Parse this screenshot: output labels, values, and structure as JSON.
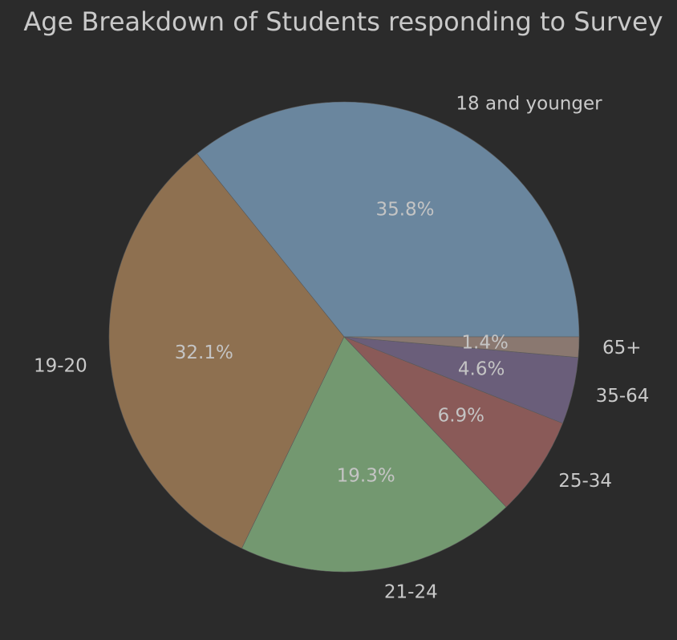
{
  "chart_data": {
    "type": "pie",
    "title": "Age Breakdown of Students responding to Survey",
    "slices": [
      {
        "label": "18 and younger",
        "pct_label": "35.8%",
        "value": 35.8,
        "color": "#6a869e"
      },
      {
        "label": "19-20",
        "pct_label": "32.1%",
        "value": 32.1,
        "color": "#8e7050"
      },
      {
        "label": "21-24",
        "pct_label": "19.3%",
        "value": 19.3,
        "color": "#739870"
      },
      {
        "label": "25-34",
        "pct_label": "6.9%",
        "value": 6.9,
        "color": "#8a5a58"
      },
      {
        "label": "35-64",
        "pct_label": "4.6%",
        "value": 4.6,
        "color": "#6a5e7a"
      },
      {
        "label": "65+",
        "pct_label": "1.4%",
        "value": 1.4,
        "color": "#8a7870"
      }
    ],
    "start_angle_deg": 0,
    "direction": "counterclockwise",
    "background": "#2b2b2b",
    "label_color": "#c9c9c9"
  }
}
